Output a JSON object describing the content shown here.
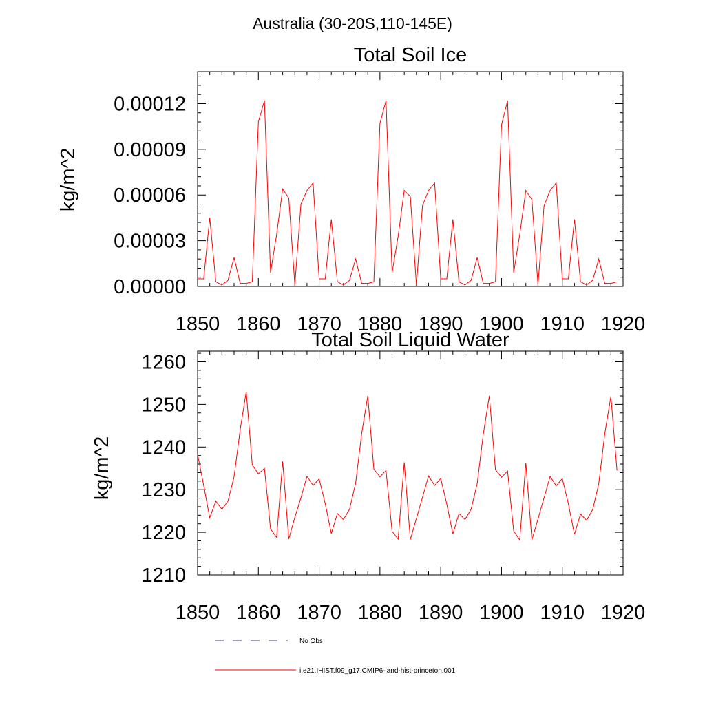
{
  "figure": {
    "suptitle": "Australia (30-20S,110-145E)"
  },
  "legend": {
    "entries": [
      {
        "label": "No Obs",
        "style": "dashed",
        "color": "#3a3a7a"
      },
      {
        "label": "i.e21.IHIST.f09_g17.CMIP6-land-hist-princeton.001",
        "style": "solid",
        "color": "#ff0000"
      }
    ]
  },
  "chart_data": [
    {
      "type": "line",
      "title": "Total Soil Ice",
      "xlabel": "",
      "ylabel": "kg/m^2",
      "xlim": [
        1850,
        1920
      ],
      "ylim": [
        0,
        0.000141
      ],
      "xticks": [
        1850,
        1860,
        1870,
        1880,
        1890,
        1900,
        1910,
        1920
      ],
      "xtick_labels": [
        "1850",
        "1860",
        "1870",
        "1880",
        "1890",
        "1900",
        "1910",
        "1920"
      ],
      "yticks": [
        0,
        3e-05,
        6e-05,
        9e-05,
        0.00012
      ],
      "ytick_labels": [
        "0.00000",
        "0.00003",
        "0.00006",
        "0.00009",
        "0.00012"
      ],
      "series": [
        {
          "name": "i.e21.IHIST.f09_g17.CMIP6-land-hist-princeton.001",
          "color": "#ff0000",
          "x": [
            1850,
            1851,
            1852,
            1853,
            1854,
            1855,
            1856,
            1857,
            1858,
            1859,
            1860,
            1861,
            1862,
            1863,
            1864,
            1865,
            1866,
            1867,
            1868,
            1869,
            1870,
            1871,
            1872,
            1873,
            1874,
            1875,
            1876,
            1877,
            1878,
            1879,
            1880,
            1881,
            1882,
            1883,
            1884,
            1885,
            1886,
            1887,
            1888,
            1889,
            1890,
            1891,
            1892,
            1893,
            1894,
            1895,
            1896,
            1897,
            1898,
            1899,
            1900,
            1901,
            1902,
            1903,
            1904,
            1905,
            1906,
            1907,
            1908,
            1909,
            1910,
            1911,
            1912,
            1913,
            1914,
            1915,
            1916,
            1917,
            1918,
            1919
          ],
          "y": [
            5e-06,
            5e-06,
            4.5e-05,
            3e-06,
            1e-06,
            4e-06,
            1.9e-05,
            2e-06,
            2e-06,
            3e-06,
            0.000108,
            0.000122,
            9e-06,
            3.4e-05,
            6.4e-05,
            5.8e-05,
            1e-06,
            5.4e-05,
            6.3e-05,
            6.8e-05,
            5e-06,
            5e-06,
            4.4e-05,
            3e-06,
            1e-06,
            4e-06,
            1.8e-05,
            2e-06,
            2e-06,
            3e-06,
            0.000107,
            0.000122,
            9e-06,
            3.3e-05,
            6.3e-05,
            5.9e-05,
            1e-06,
            5.3e-05,
            6.3e-05,
            6.8e-05,
            5e-06,
            5e-06,
            4.4e-05,
            3e-06,
            1e-06,
            4e-06,
            1.9e-05,
            2e-06,
            2e-06,
            3e-06,
            0.000106,
            0.000122,
            9e-06,
            3.4e-05,
            6.3e-05,
            5.7e-05,
            1e-06,
            5.3e-05,
            6.3e-05,
            6.8e-05,
            5e-06,
            5e-06,
            4.4e-05,
            3e-06,
            1e-06,
            4e-06,
            1.8e-05,
            2e-06,
            2e-06,
            3e-06
          ]
        }
      ]
    },
    {
      "type": "line",
      "title": "Total Soil Liquid Water",
      "xlabel": "",
      "ylabel": "kg/m^2",
      "xlim": [
        1850,
        1920
      ],
      "ylim": [
        1210,
        1262.5
      ],
      "xticks": [
        1850,
        1860,
        1870,
        1880,
        1890,
        1900,
        1910,
        1920
      ],
      "xtick_labels": [
        "1850",
        "1860",
        "1870",
        "1880",
        "1890",
        "1900",
        "1910",
        "1920"
      ],
      "yticks": [
        1210,
        1220,
        1230,
        1240,
        1250,
        1260
      ],
      "ytick_labels": [
        "1210",
        "1220",
        "1230",
        "1240",
        "1250",
        "1260"
      ],
      "series": [
        {
          "name": "i.e21.IHIST.f09_g17.CMIP6-land-hist-princeton.001",
          "color": "#ff0000",
          "x": [
            1850,
            1851,
            1852,
            1853,
            1854,
            1855,
            1856,
            1857,
            1858,
            1859,
            1860,
            1861,
            1862,
            1863,
            1864,
            1865,
            1866,
            1867,
            1868,
            1869,
            1870,
            1871,
            1872,
            1873,
            1874,
            1875,
            1876,
            1877,
            1878,
            1879,
            1880,
            1881,
            1882,
            1883,
            1884,
            1885,
            1886,
            1887,
            1888,
            1889,
            1890,
            1891,
            1892,
            1893,
            1894,
            1895,
            1896,
            1897,
            1898,
            1899,
            1900,
            1901,
            1902,
            1903,
            1904,
            1905,
            1906,
            1907,
            1908,
            1909,
            1910,
            1911,
            1912,
            1913,
            1914,
            1915,
            1916,
            1917,
            1918,
            1919
          ],
          "y": [
            1238.3,
            1231.0,
            1223.4,
            1227.3,
            1225.4,
            1227.3,
            1233.0,
            1244.0,
            1253.0,
            1235.8,
            1233.7,
            1235.0,
            1220.8,
            1218.8,
            1236.6,
            1218.4,
            1223.5,
            1228.1,
            1233.1,
            1231.0,
            1232.5,
            1226.7,
            1219.7,
            1224.4,
            1223.0,
            1225.4,
            1231.5,
            1243.2,
            1252.0,
            1234.8,
            1233.0,
            1234.5,
            1220.2,
            1218.4,
            1236.4,
            1218.3,
            1223.2,
            1228.2,
            1233.2,
            1231.0,
            1232.6,
            1226.6,
            1219.6,
            1224.4,
            1223.0,
            1225.4,
            1231.4,
            1243.0,
            1252.0,
            1234.7,
            1232.9,
            1234.4,
            1220.3,
            1218.2,
            1236.3,
            1218.2,
            1223.1,
            1228.1,
            1233.1,
            1230.9,
            1232.6,
            1226.7,
            1219.5,
            1224.3,
            1222.8,
            1225.3,
            1231.4,
            1243.2,
            1251.9,
            1234.5
          ]
        }
      ]
    }
  ]
}
